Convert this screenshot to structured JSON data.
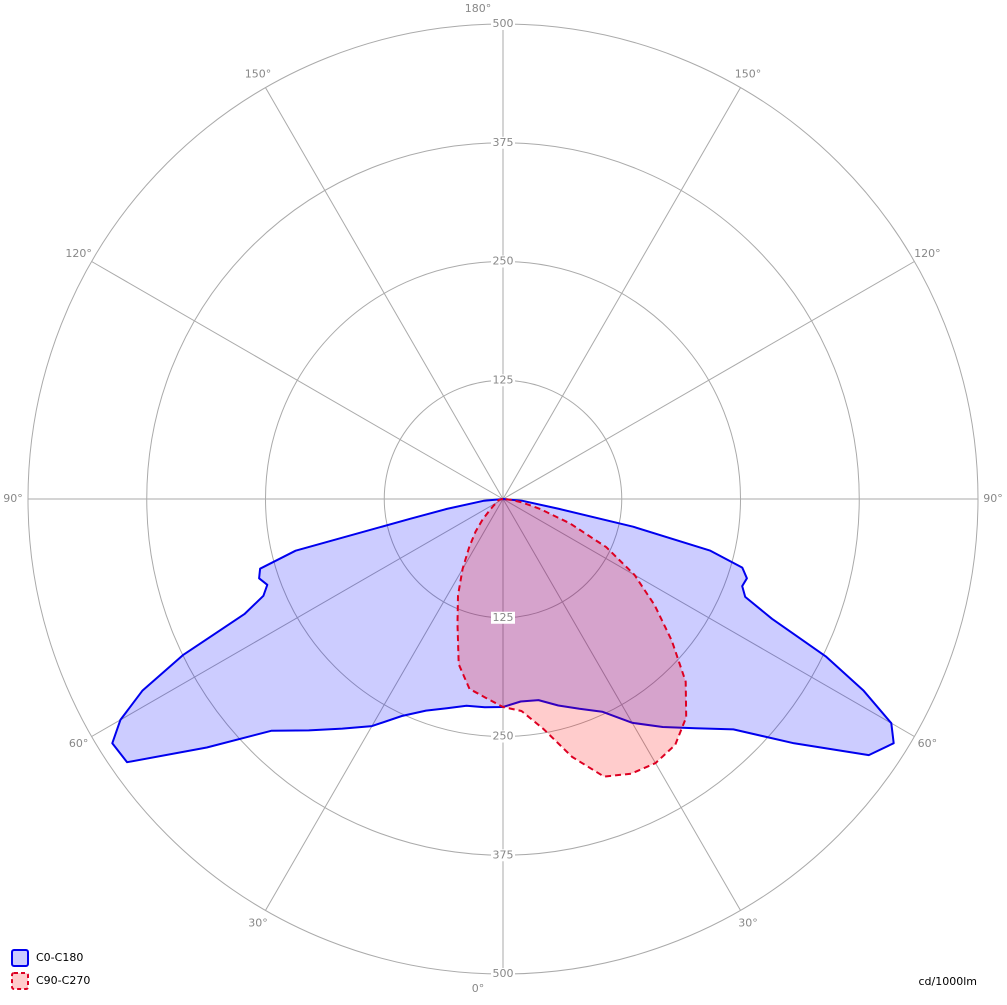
{
  "chart_data": {
    "type": "polar",
    "rlim": [
      0,
      500
    ],
    "rticks": [
      125,
      250,
      375,
      500
    ],
    "angle_ticks": [
      {
        "value": 0,
        "label": "0°"
      },
      {
        "value": 30,
        "label": "30°"
      },
      {
        "value": 60,
        "label": "60°"
      },
      {
        "value": 90,
        "label": "90°"
      },
      {
        "value": 120,
        "label": "120°"
      },
      {
        "value": 150,
        "label": "150°"
      },
      {
        "value": 180,
        "label": "180°"
      }
    ],
    "unit": "cd/1000lm",
    "series": [
      {
        "name": "C0-C180",
        "color": "#0000ee",
        "fill": "rgba(0,0,255,0.2)",
        "dashed": false,
        "x": [
          -90,
          -85,
          -80,
          -78,
          -76,
          -74,
          -72,
          -70,
          -68,
          -66,
          -64,
          -62,
          -60,
          -58,
          -55,
          -50,
          -45,
          -40,
          -35,
          -30,
          -25,
          -20,
          -15,
          -10,
          -5,
          0,
          5,
          10,
          15,
          20,
          25,
          30,
          35,
          40,
          45,
          50,
          55,
          58,
          60,
          62,
          64,
          66,
          68,
          70,
          72,
          74,
          76,
          78,
          80,
          85,
          90
        ],
        "values": [
          0,
          20,
          60,
          100,
          225,
          266,
          270,
          264,
          272,
          298,
          375,
          430,
          465,
          485,
          483,
          407,
          345,
          318,
          295,
          276,
          252,
          237,
          228,
          221,
          220,
          219,
          214,
          215,
          225,
          235,
          247,
          272,
          293,
          315,
          343,
          400,
          470,
          485,
          472,
          430,
          378,
          310,
          275,
          268,
          270,
          262,
          225,
          140,
          60,
          20,
          0
        ]
      },
      {
        "name": "C90-C270",
        "color": "#dd0022",
        "fill": "rgba(255,0,0,0.2)",
        "dashed": true,
        "x": [
          -90,
          -85,
          -80,
          -75,
          -70,
          -65,
          -60,
          -55,
          -50,
          -45,
          -40,
          -35,
          -30,
          -25,
          -20,
          -15,
          -10,
          -5,
          0,
          5,
          10,
          15,
          20,
          25,
          30,
          35,
          40,
          45,
          50,
          55,
          60,
          65,
          70,
          75,
          80,
          85,
          90
        ],
        "values": [
          0,
          2,
          4,
          5,
          6,
          7,
          8,
          12,
          18,
          30,
          45,
          62,
          85,
          112,
          140,
          180,
          203,
          210,
          219,
          224,
          246,
          281,
          311,
          319,
          321,
          316,
          300,
          272,
          232,
          195,
          160,
          120,
          75,
          40,
          20,
          8,
          0
        ]
      }
    ]
  }
}
